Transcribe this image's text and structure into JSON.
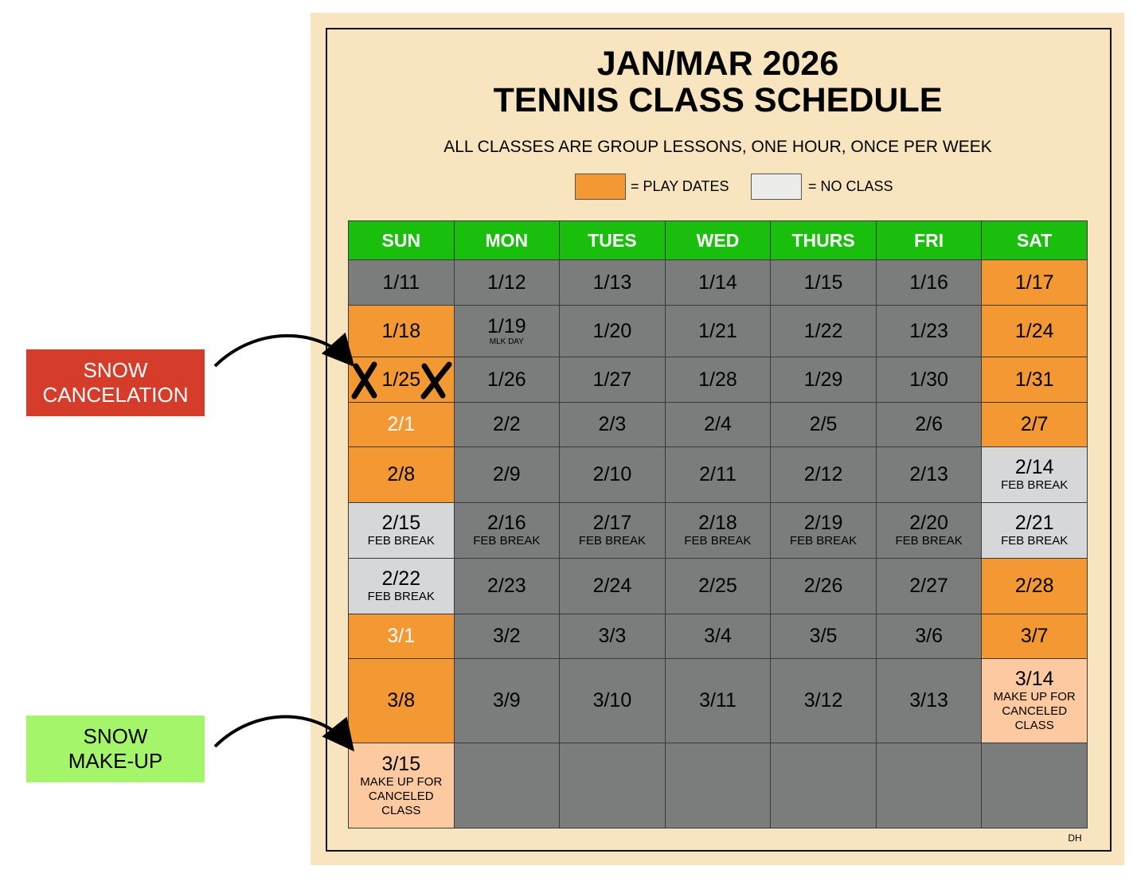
{
  "header": {
    "title_line1": "JAN/MAR 2026",
    "title_line2": "TENNIS CLASS SCHEDULE",
    "subtitle": "ALL CLASSES ARE GROUP LESSONS, ONE HOUR, ONCE PER WEEK"
  },
  "legend": [
    {
      "label": "= PLAY DATES",
      "color": "#f39833"
    },
    {
      "label": "= NO CLASS",
      "color": "#ececea"
    }
  ],
  "annotations": [
    {
      "text": "SNOW\nCANCELATION",
      "color": "#d63c2a",
      "text_color": "#ffffff"
    },
    {
      "text": "SNOW\nMAKE-UP",
      "color": "#a4f56a",
      "text_color": "#000000"
    }
  ],
  "footer": "DH",
  "table": {
    "columns": [
      "SUN",
      "MON",
      "TUES",
      "WED",
      "THURS",
      "FRI",
      "SAT"
    ],
    "header_color": "#19bf0c",
    "rows": [
      [
        {
          "date": "1/11",
          "fill": "#7b7c7c"
        },
        {
          "date": "1/12",
          "fill": "#7b7c7c"
        },
        {
          "date": "1/13",
          "fill": "#7b7c7c"
        },
        {
          "date": "1/14",
          "fill": "#7b7c7c"
        },
        {
          "date": "1/15",
          "fill": "#7b7c7c"
        },
        {
          "date": "1/16",
          "fill": "#7b7c7c"
        },
        {
          "date": "1/17",
          "fill": "#f39833"
        }
      ],
      [
        {
          "date": "1/18",
          "fill": "#f39833"
        },
        {
          "date": "1/19",
          "note": "MLK DAY",
          "fill": "#7b7c7c"
        },
        {
          "date": "1/20",
          "fill": "#7b7c7c"
        },
        {
          "date": "1/21",
          "fill": "#7b7c7c"
        },
        {
          "date": "1/22",
          "fill": "#7b7c7c"
        },
        {
          "date": "1/23",
          "fill": "#7b7c7c"
        },
        {
          "date": "1/24",
          "fill": "#f39833"
        }
      ],
      [
        {
          "date": "1/25",
          "fill": "#f39833"
        },
        {
          "date": "1/26",
          "fill": "#7b7c7c"
        },
        {
          "date": "1/27",
          "fill": "#7b7c7c"
        },
        {
          "date": "1/28",
          "fill": "#7b7c7c"
        },
        {
          "date": "1/29",
          "fill": "#7b7c7c"
        },
        {
          "date": "1/30",
          "fill": "#7b7c7c"
        },
        {
          "date": "1/31",
          "fill": "#f39833"
        }
      ],
      [
        {
          "date": "2/1",
          "fill": "#f39833",
          "text_color": "#ffffff"
        },
        {
          "date": "2/2",
          "fill": "#7b7c7c"
        },
        {
          "date": "2/3",
          "fill": "#7b7c7c"
        },
        {
          "date": "2/4",
          "fill": "#7b7c7c"
        },
        {
          "date": "2/5",
          "fill": "#7b7c7c"
        },
        {
          "date": "2/6",
          "fill": "#7b7c7c"
        },
        {
          "date": "2/7",
          "fill": "#f39833"
        }
      ],
      [
        {
          "date": "2/8",
          "fill": "#f39833"
        },
        {
          "date": "2/9",
          "fill": "#7b7c7c"
        },
        {
          "date": "2/10",
          "fill": "#7b7c7c"
        },
        {
          "date": "2/11",
          "fill": "#7b7c7c"
        },
        {
          "date": "2/12",
          "fill": "#7b7c7c"
        },
        {
          "date": "2/13",
          "fill": "#7b7c7c"
        },
        {
          "date": "2/14",
          "note": "FEB BREAK",
          "fill": "#d5d7d9"
        }
      ],
      [
        {
          "date": "2/15",
          "note": "FEB BREAK",
          "fill": "#d5d7d9"
        },
        {
          "date": "2/16",
          "note": "FEB BREAK",
          "fill": "#7b7c7c"
        },
        {
          "date": "2/17",
          "note": "FEB BREAK",
          "fill": "#7b7c7c"
        },
        {
          "date": "2/18",
          "note": "FEB BREAK",
          "fill": "#7b7c7c"
        },
        {
          "date": "2/19",
          "note": "FEB BREAK",
          "fill": "#7b7c7c"
        },
        {
          "date": "2/20",
          "note": "FEB BREAK",
          "fill": "#7b7c7c"
        },
        {
          "date": "2/21",
          "note": "FEB BREAK",
          "fill": "#d5d7d9"
        }
      ],
      [
        {
          "date": "2/22",
          "note": "FEB BREAK",
          "fill": "#d5d7d9"
        },
        {
          "date": "2/23",
          "fill": "#7b7c7c"
        },
        {
          "date": "2/24",
          "fill": "#7b7c7c"
        },
        {
          "date": "2/25",
          "fill": "#7b7c7c"
        },
        {
          "date": "2/26",
          "fill": "#7b7c7c"
        },
        {
          "date": "2/27",
          "fill": "#7b7c7c"
        },
        {
          "date": "2/28",
          "fill": "#f39833"
        }
      ],
      [
        {
          "date": "3/1",
          "fill": "#f39833",
          "text_color": "#ffffff"
        },
        {
          "date": "3/2",
          "fill": "#7b7c7c"
        },
        {
          "date": "3/3",
          "fill": "#7b7c7c"
        },
        {
          "date": "3/4",
          "fill": "#7b7c7c"
        },
        {
          "date": "3/5",
          "fill": "#7b7c7c"
        },
        {
          "date": "3/6",
          "fill": "#7b7c7c"
        },
        {
          "date": "3/7",
          "fill": "#f39833"
        }
      ],
      [
        {
          "date": "3/8",
          "fill": "#f39833"
        },
        {
          "date": "3/9",
          "fill": "#7b7c7c"
        },
        {
          "date": "3/10",
          "fill": "#7b7c7c"
        },
        {
          "date": "3/11",
          "fill": "#7b7c7c"
        },
        {
          "date": "3/12",
          "fill": "#7b7c7c"
        },
        {
          "date": "3/13",
          "fill": "#7b7c7c"
        },
        {
          "date": "3/14",
          "note": "MAKE UP FOR\nCANCELED\nCLASS",
          "fill": "#fdc9a1"
        }
      ],
      [
        {
          "date": "3/15",
          "note": "MAKE UP FOR\nCANCELED\nCLASS",
          "fill": "#fdc9a1"
        },
        {
          "fill": "#7b7c7c"
        },
        {
          "fill": "#7b7c7c"
        },
        {
          "fill": "#7b7c7c"
        },
        {
          "fill": "#7b7c7c"
        },
        {
          "fill": "#7b7c7c"
        },
        {
          "fill": "#7b7c7c"
        }
      ]
    ]
  }
}
